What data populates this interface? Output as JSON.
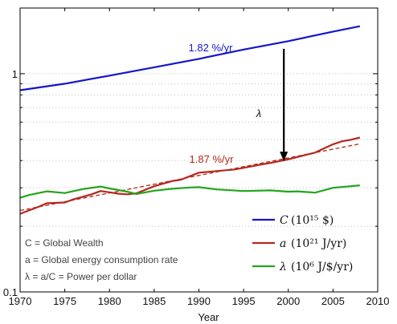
{
  "chart_data": {
    "type": "line",
    "title": "",
    "xlabel": "Year",
    "ylabel": "",
    "xlim": [
      1970,
      2010
    ],
    "ylim": [
      0.1,
      2
    ],
    "yscale": "log",
    "grid": "horizontal dotted",
    "x_ticks": [
      1970,
      1975,
      1980,
      1985,
      1990,
      1995,
      2000,
      2005,
      2010
    ],
    "y_tick_labels": [
      {
        "value": 0.1,
        "label": "0.1"
      },
      {
        "value": 1,
        "label": "1"
      }
    ],
    "series": [
      {
        "name": "C (10^15 $)",
        "legend_label": "C",
        "legend_unit": "(10¹⁵ $)",
        "color": "#1515c8",
        "x": [
          1970,
          1975,
          1980,
          1985,
          1990,
          1995,
          2000,
          2005,
          2008
        ],
        "values": [
          0.84,
          0.9,
          0.98,
          1.07,
          1.17,
          1.29,
          1.41,
          1.56,
          1.65
        ]
      },
      {
        "name": "a (10^21 J/yr)",
        "legend_label": "a",
        "legend_unit": "(10²¹ J/yr)",
        "color": "#b5281d",
        "x": [
          1970,
          1972,
          1973,
          1975,
          1976,
          1978,
          1979,
          1980,
          1981,
          1982,
          1983,
          1985,
          1987,
          1988,
          1990,
          1992,
          1994,
          1996,
          1997,
          1998,
          2000,
          2001,
          2003,
          2004,
          2005,
          2006,
          2007,
          2008
        ],
        "values": [
          0.228,
          0.245,
          0.255,
          0.257,
          0.266,
          0.28,
          0.29,
          0.286,
          0.282,
          0.28,
          0.283,
          0.305,
          0.322,
          0.327,
          0.352,
          0.358,
          0.364,
          0.377,
          0.384,
          0.39,
          0.405,
          0.415,
          0.435,
          0.455,
          0.475,
          0.49,
          0.498,
          0.51
        ]
      },
      {
        "name": "a trend (1.87 %/yr)",
        "legend": false,
        "color": "#b5281d",
        "dashed": true,
        "x": [
          1970,
          2008
        ],
        "values": [
          0.236,
          0.477
        ]
      },
      {
        "name": "λ (10^6 J/$/yr)",
        "legend_label": "λ",
        "legend_unit": "(10⁶ J/$/yr)",
        "color": "#22a51c",
        "x": [
          1970,
          1971,
          1973,
          1975,
          1977,
          1979,
          1980,
          1982,
          1983,
          1985,
          1987,
          1989,
          1990,
          1992,
          1995,
          1998,
          2000,
          2001,
          2003,
          2005,
          2008
        ],
        "values": [
          0.27,
          0.278,
          0.289,
          0.284,
          0.296,
          0.304,
          0.298,
          0.288,
          0.281,
          0.291,
          0.297,
          0.301,
          0.302,
          0.295,
          0.29,
          0.292,
          0.288,
          0.289,
          0.285,
          0.3,
          0.308
        ]
      }
    ],
    "annotations": [
      {
        "text": "1.82 %/yr",
        "color": "#1515c8"
      },
      {
        "text": "1.87 %/yr",
        "color": "#b5281d"
      },
      {
        "text": "λ",
        "color": "#111111"
      }
    ],
    "arrow": {
      "x": 1999.5,
      "from": 1.3,
      "to": 0.4,
      "color": "#000000"
    },
    "notes": [
      "C = Global Wealth",
      "a = Global energy consumption rate",
      "λ = a/C = Power per dollar"
    ],
    "legend_position": "bottom-right"
  }
}
